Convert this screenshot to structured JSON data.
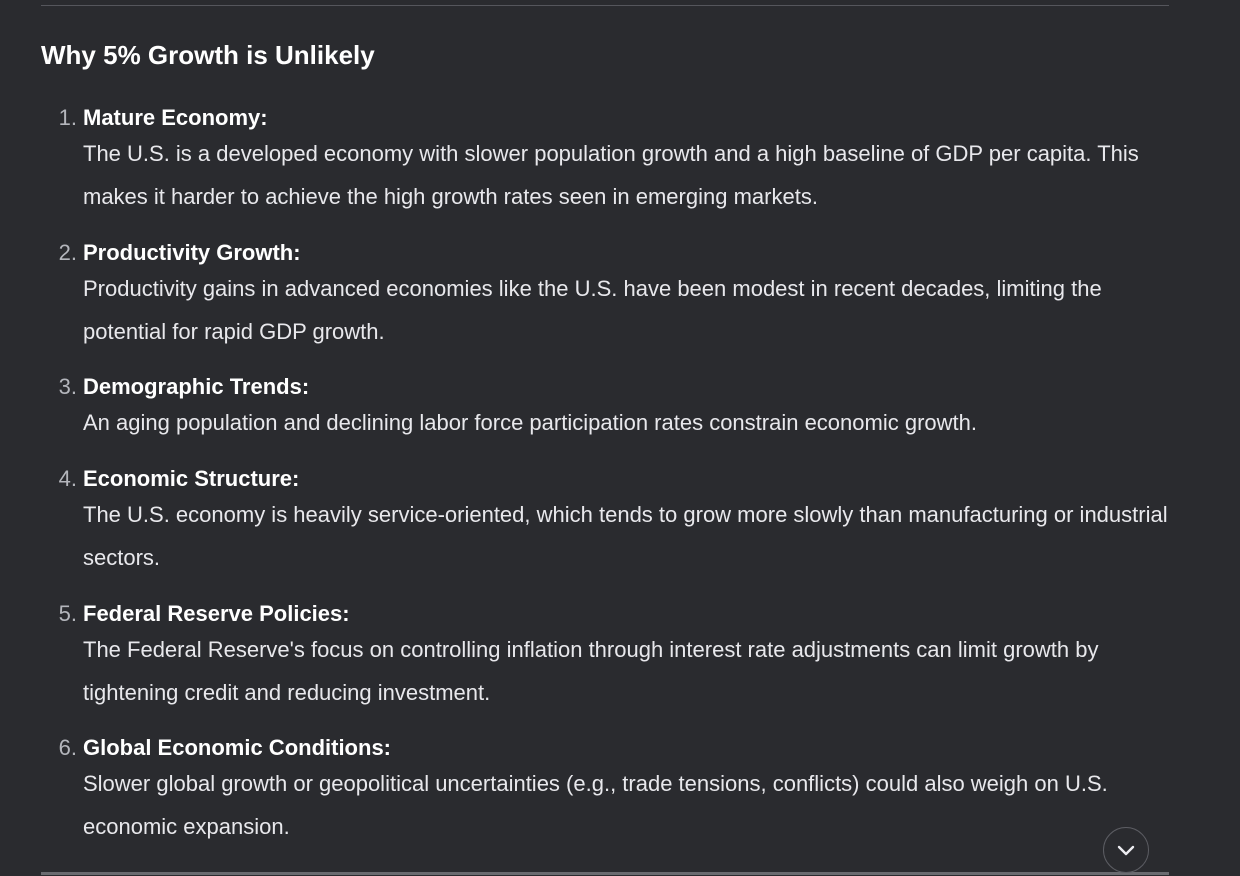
{
  "section": {
    "heading": "Why 5% Growth is Unlikely"
  },
  "reasons": [
    {
      "number": "1.",
      "title": "Mature Economy:",
      "description": "The U.S. is a developed economy with slower population growth and a high baseline of GDP per capita. This makes it harder to achieve the high growth rates seen in emerging markets."
    },
    {
      "number": "2.",
      "title": "Productivity Growth:",
      "description": "Productivity gains in advanced economies like the U.S. have been modest in recent decades, limiting the potential for rapid GDP growth."
    },
    {
      "number": "3.",
      "title": "Demographic Trends:",
      "description": "An aging population and declining labor force participation rates constrain economic growth."
    },
    {
      "number": "4.",
      "title": "Economic Structure:",
      "description": "The U.S. economy is heavily service-oriented, which tends to grow more slowly than manufacturing or industrial sectors."
    },
    {
      "number": "5.",
      "title": "Federal Reserve Policies:",
      "description": "The Federal Reserve's focus on controlling inflation through interest rate adjustments can limit growth by tightening credit and reducing investment."
    },
    {
      "number": "6.",
      "title": "Global Economic Conditions:",
      "description": "Slower global growth or geopolitical uncertainties (e.g., trade tensions, conflicts) could also weigh on U.S. economic expansion."
    }
  ],
  "controls": {
    "scroll_down_icon": "chevron-down-icon"
  }
}
